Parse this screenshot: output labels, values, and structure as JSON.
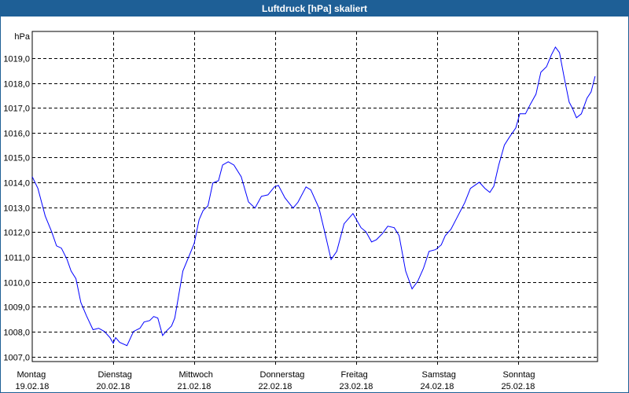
{
  "window": {
    "title": "Luftdruck [hPa] skaliert"
  },
  "chart_data": {
    "type": "line",
    "title": "Luftdruck [hPa] skaliert",
    "ylabel": "hPa",
    "xlabel": "",
    "ylim": [
      1006.8,
      1020.07
    ],
    "xlim": [
      0,
      6.98
    ],
    "grid": true,
    "y_ticks": [
      {
        "value": 1007,
        "label": "1007,0"
      },
      {
        "value": 1008,
        "label": "1008,0"
      },
      {
        "value": 1009,
        "label": "1009,0"
      },
      {
        "value": 1010,
        "label": "1010,0"
      },
      {
        "value": 1011,
        "label": "1011,0"
      },
      {
        "value": 1012,
        "label": "1012,0"
      },
      {
        "value": 1013,
        "label": "1013,0"
      },
      {
        "value": 1014,
        "label": "1014,0"
      },
      {
        "value": 1015,
        "label": "1015,0"
      },
      {
        "value": 1016,
        "label": "1016,0"
      },
      {
        "value": 1017,
        "label": "1017,0"
      },
      {
        "value": 1018,
        "label": "1018,0"
      },
      {
        "value": 1019,
        "label": "1019,0"
      }
    ],
    "x_ticks": [
      {
        "value": 0,
        "day": "Montag",
        "date": "19.02.18"
      },
      {
        "value": 1,
        "day": "Dienstag",
        "date": "20.02.18"
      },
      {
        "value": 2,
        "day": "Mittwoch",
        "date": "21.02.18"
      },
      {
        "value": 3,
        "day": "Donnerstag",
        "date": "22.02.18"
      },
      {
        "value": 4,
        "day": "Freitag",
        "date": "23.02.18"
      },
      {
        "value": 5,
        "day": "Samstag",
        "date": "24.02.18"
      },
      {
        "value": 6,
        "day": "Sonntag",
        "date": "25.02.18"
      }
    ],
    "series": [
      {
        "name": "Luftdruck",
        "color": "#0000ff",
        "x": [
          0,
          0.07,
          0.16,
          0.24,
          0.3,
          0.36,
          0.43,
          0.48,
          0.54,
          0.6,
          0.67,
          0.75,
          0.82,
          0.89,
          0.96,
          1.0,
          1.03,
          1.08,
          1.17,
          1.25,
          1.33,
          1.38,
          1.45,
          1.5,
          1.55,
          1.61,
          1.66,
          1.72,
          1.76,
          1.86,
          1.94,
          2.0,
          2.06,
          2.11,
          2.17,
          2.23,
          2.3,
          2.35,
          2.42,
          2.49,
          2.58,
          2.67,
          2.75,
          2.83,
          2.91,
          2.99,
          3.04,
          3.12,
          3.22,
          3.28,
          3.38,
          3.44,
          3.54,
          3.61,
          3.69,
          3.76,
          3.85,
          3.96,
          4.06,
          4.12,
          4.19,
          4.25,
          4.32,
          4.39,
          4.47,
          4.53,
          4.61,
          4.69,
          4.76,
          4.83,
          4.9,
          4.98,
          5.05,
          5.1,
          5.17,
          5.24,
          5.34,
          5.41,
          5.52,
          5.59,
          5.65,
          5.7,
          5.76,
          5.83,
          5.89,
          5.97,
          6.02,
          6.09,
          6.15,
          6.22,
          6.28,
          6.35,
          6.41,
          6.46,
          6.51,
          6.57,
          6.63,
          6.67,
          6.72,
          6.78,
          6.85,
          6.9,
          6.95
        ],
        "y": [
          1014.23,
          1013.76,
          1012.65,
          1012.02,
          1011.45,
          1011.36,
          1010.9,
          1010.44,
          1010.13,
          1009.18,
          1008.64,
          1008.08,
          1008.14,
          1008.01,
          1007.76,
          1007.54,
          1007.76,
          1007.57,
          1007.44,
          1008.01,
          1008.14,
          1008.39,
          1008.45,
          1008.61,
          1008.55,
          1007.85,
          1008.04,
          1008.23,
          1008.55,
          1010.44,
          1011.07,
          1011.55,
          1012.5,
          1012.87,
          1013.06,
          1013.98,
          1014.07,
          1014.7,
          1014.83,
          1014.7,
          1014.23,
          1013.22,
          1012.97,
          1013.44,
          1013.5,
          1013.82,
          1013.88,
          1013.38,
          1012.97,
          1013.2,
          1013.82,
          1013.7,
          1012.97,
          1012.02,
          1010.9,
          1011.23,
          1012.34,
          1012.75,
          1012.18,
          1012.02,
          1011.61,
          1011.7,
          1011.93,
          1012.24,
          1012.18,
          1011.86,
          1010.44,
          1009.72,
          1010.03,
          1010.54,
          1011.23,
          1011.3,
          1011.49,
          1011.86,
          1012.12,
          1012.56,
          1013.19,
          1013.76,
          1014.01,
          1013.76,
          1013.6,
          1013.85,
          1014.7,
          1015.5,
          1015.81,
          1016.19,
          1016.76,
          1016.76,
          1017.14,
          1017.55,
          1018.43,
          1018.65,
          1019.13,
          1019.44,
          1019.22,
          1018.18,
          1017.23,
          1016.98,
          1016.6,
          1016.76,
          1017.39,
          1017.64,
          1018.27
        ]
      }
    ]
  }
}
